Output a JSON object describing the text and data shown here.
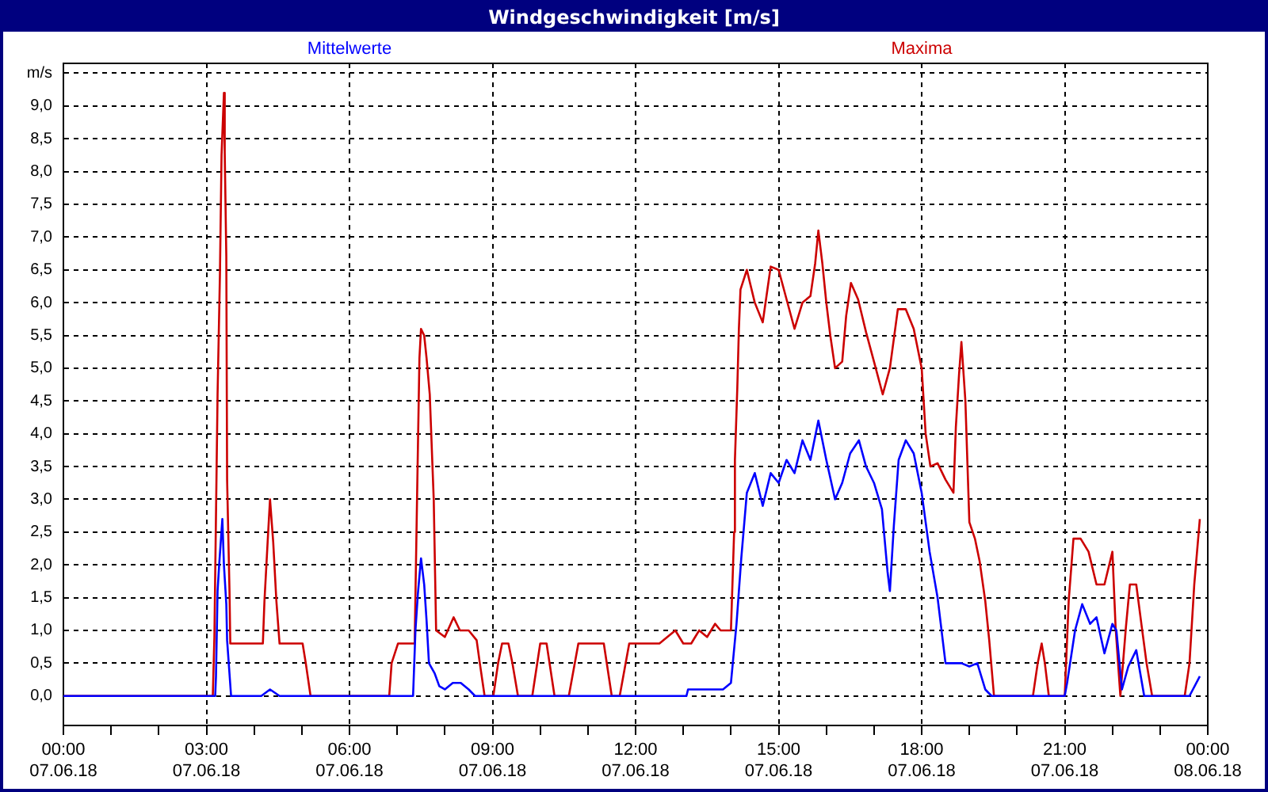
{
  "chart_data": {
    "type": "line",
    "title": "Windgeschwindigkeit [m/s]",
    "legend": "top",
    "grid": true,
    "marker": "none",
    "line_style": "solid",
    "xlim": [
      "--06-07T00:00",
      "--06-08T00:00"
    ],
    "xticks": [
      {
        "value": "--06-07T00:00",
        "label": "00:00\n07.06.18"
      },
      {
        "value": "--06-07T01:00",
        "label": null
      },
      {
        "value": "--06-07T02:00",
        "label": null
      },
      {
        "value": "--06-07T03:00",
        "label": "03:00\n07.06.18"
      },
      {
        "value": "--06-07T04:00",
        "label": null
      },
      {
        "value": "--06-07T05:00",
        "label": null
      },
      {
        "value": "--06-07T06:00",
        "label": "06:00\n07.06.18"
      },
      {
        "value": "--06-07T07:00",
        "label": null
      },
      {
        "value": "--06-07T08:00",
        "label": null
      },
      {
        "value": "--06-07T09:00",
        "label": "09:00\n07.06.18"
      },
      {
        "value": "--06-07T10:00",
        "label": null
      },
      {
        "value": "--06-07T11:00",
        "label": null
      },
      {
        "value": "--06-07T12:00",
        "label": "12:00\n07.06.18"
      },
      {
        "value": "--06-07T13:00",
        "label": null
      },
      {
        "value": "--06-07T14:00",
        "label": null
      },
      {
        "value": "--06-07T15:00",
        "label": "15:00\n07.06.18"
      },
      {
        "value": "--06-07T16:00",
        "label": null
      },
      {
        "value": "--06-07T17:00",
        "label": null
      },
      {
        "value": "--06-07T18:00",
        "label": "18:00\n07.06.18"
      },
      {
        "value": "--06-07T19:00",
        "label": null
      },
      {
        "value": "--06-07T20:00",
        "label": null
      },
      {
        "value": "--06-07T21:00",
        "label": "21:00\n07.06.18"
      },
      {
        "value": "--06-07T22:00",
        "label": null
      },
      {
        "value": "--06-07T23:00",
        "label": null
      },
      {
        "value": "--06-08T00:00",
        "label": "00:00\n08.06.18"
      }
    ],
    "ylim": [
      -0.45,
      9.65
    ],
    "yticks": [
      {
        "value": 0,
        "label": "0,0"
      },
      {
        "value": 0.5,
        "label": "0,5"
      },
      {
        "value": 1,
        "label": "1,0"
      },
      {
        "value": 1.5,
        "label": "1,5"
      },
      {
        "value": 2,
        "label": "2,0"
      },
      {
        "value": 2.5,
        "label": "2,5"
      },
      {
        "value": 3,
        "label": "3,0"
      },
      {
        "value": 3.5,
        "label": "3,5"
      },
      {
        "value": 4,
        "label": "4,0"
      },
      {
        "value": 4.5,
        "label": "4,5"
      },
      {
        "value": 5,
        "label": "5,0"
      },
      {
        "value": 5.5,
        "label": "5,5"
      },
      {
        "value": 6,
        "label": "6,0"
      },
      {
        "value": 6.5,
        "label": "6,5"
      },
      {
        "value": 7,
        "label": "7,0"
      },
      {
        "value": 7.5,
        "label": "7,5"
      },
      {
        "value": 8,
        "label": "8,0"
      },
      {
        "value": 8.5,
        "label": "8,5"
      },
      {
        "value": 9,
        "label": "9,0"
      },
      {
        "value": 9.5,
        "label": "m/s"
      }
    ],
    "series": [
      {
        "name": "Mittelwerte",
        "color": "#0000ff",
        "x": [
          "--06-07T00:00",
          "--06-07T03:11",
          "--06-07T03:12",
          "--06-07T03:14",
          "--06-07T03:16",
          "--06-07T03:20",
          "--06-07T03:22",
          "--06-07T03:25",
          "--06-07T03:26",
          "--06-07T03:31",
          "--06-07T04:09",
          "--06-07T04:20",
          "--06-07T04:32",
          "--06-07T07:20",
          "--06-07T07:23",
          "--06-07T07:26",
          "--06-07T07:30",
          "--06-07T07:34",
          "--06-07T07:37",
          "--06-07T07:40",
          "--06-07T07:47",
          "--06-07T07:53",
          "--06-07T08:00",
          "--06-07T08:10",
          "--06-07T08:20",
          "--06-07T08:30",
          "--06-07T08:38",
          "--06-07T13:04",
          "--06-07T13:06",
          "--06-07T13:50",
          "--06-07T14:00",
          "--06-07T14:07",
          "--06-07T14:13",
          "--06-07T14:20",
          "--06-07T14:30",
          "--06-07T14:40",
          "--06-07T14:50",
          "--06-07T15:00",
          "--06-07T15:10",
          "--06-07T15:20",
          "--06-07T15:30",
          "--06-07T15:40",
          "--06-07T15:50",
          "--06-07T16:00",
          "--06-07T16:11",
          "--06-07T16:20",
          "--06-07T16:30",
          "--06-07T16:41",
          "--06-07T16:50",
          "--06-07T17:00",
          "--06-07T17:10",
          "--06-07T17:17",
          "--06-07T17:20",
          "--06-07T17:25",
          "--06-07T17:31",
          "--06-07T17:40",
          "--06-07T17:50",
          "--06-07T18:00",
          "--06-07T18:10",
          "--06-07T18:20",
          "--06-07T18:30",
          "--06-07T18:50",
          "--06-07T19:00",
          "--06-07T19:10",
          "--06-07T19:20",
          "--06-07T19:28",
          "--06-07T21:00",
          "--06-07T21:03",
          "--06-07T21:13",
          "--06-07T21:22",
          "--06-07T21:32",
          "--06-07T21:40",
          "--06-07T21:50",
          "--06-07T22:00",
          "--06-07T22:05",
          "--06-07T22:12",
          "--06-07T22:20",
          "--06-07T22:30",
          "--06-07T22:40",
          "--06-07T23:37",
          "--06-07T23:50"
        ],
        "values": [
          0,
          0,
          0.3,
          1.6,
          2.0,
          2.7,
          2.0,
          1.4,
          0.85,
          0,
          0,
          0.1,
          0,
          0,
          1.0,
          1.55,
          2.1,
          1.7,
          1.15,
          0.5,
          0.35,
          0.15,
          0.1,
          0.2,
          0.2,
          0.1,
          0,
          0,
          0.1,
          0.1,
          0.2,
          1.1,
          2.1,
          3.1,
          3.4,
          2.9,
          3.4,
          3.25,
          3.6,
          3.4,
          3.9,
          3.6,
          4.2,
          3.6,
          3.0,
          3.25,
          3.7,
          3.9,
          3.5,
          3.25,
          2.85,
          1.9,
          1.6,
          2.6,
          3.6,
          3.9,
          3.7,
          3.1,
          2.2,
          1.5,
          0.5,
          0.5,
          0.45,
          0.5,
          0.1,
          0,
          0,
          0.2,
          1.0,
          1.4,
          1.1,
          1.2,
          0.65,
          1.1,
          1.0,
          0.1,
          0.45,
          0.7,
          0,
          0,
          0.3
        ]
      },
      {
        "name": "Maxima",
        "color": "#cc0000",
        "x": [
          "--06-07T00:00",
          "--06-07T03:08",
          "--06-07T03:10",
          "--06-07T03:12",
          "--06-07T03:14",
          "--06-07T03:17",
          "--06-07T03:19",
          "--06-07T03:22",
          "--06-07T03:23",
          "--06-07T03:25",
          "--06-07T03:26",
          "--06-07T03:29",
          "--06-07T03:30",
          "--06-07T04:11",
          "--06-07T04:13",
          "--06-07T04:17",
          "--06-07T04:20",
          "--06-07T04:24",
          "--06-07T04:28",
          "--06-07T04:32",
          "--06-07T05:01",
          "--06-07T05:05",
          "--06-07T05:11",
          "--06-07T06:50",
          "--06-07T06:53",
          "--06-07T07:01",
          "--06-07T07:22",
          "--06-07T07:25",
          "--06-07T07:28",
          "--06-07T07:30",
          "--06-07T07:34",
          "--06-07T07:37",
          "--06-07T07:41",
          "--06-07T07:46",
          "--06-07T07:49",
          "--06-07T08:00",
          "--06-07T08:11",
          "--06-07T08:19",
          "--06-07T08:30",
          "--06-07T08:40",
          "--06-07T08:44",
          "--06-07T08:50",
          "--06-07T09:01",
          "--06-07T09:07",
          "--06-07T09:12",
          "--06-07T09:20",
          "--06-07T09:25",
          "--06-07T09:32",
          "--06-07T09:50",
          "--06-07T10:00",
          "--06-07T10:08",
          "--06-07T10:18",
          "--06-07T10:36",
          "--06-07T10:48",
          "--06-07T11:20",
          "--06-07T11:30",
          "--06-07T11:40",
          "--06-07T11:52",
          "--06-07T12:30",
          "--06-07T12:50",
          "--06-07T13:00",
          "--06-07T13:10",
          "--06-07T13:20",
          "--06-07T13:30",
          "--06-07T13:40",
          "--06-07T13:47",
          "--06-07T14:00",
          "--06-07T14:04",
          "--06-07T14:05",
          "--06-07T14:08",
          "--06-07T14:10",
          "--06-07T14:12",
          "--06-07T14:20",
          "--06-07T14:30",
          "--06-07T14:40",
          "--06-07T14:50",
          "--06-07T15:00",
          "--06-07T15:10",
          "--06-07T15:20",
          "--06-07T15:30",
          "--06-07T15:40",
          "--06-07T15:46",
          "--06-07T15:50",
          "--06-07T15:55",
          "--06-07T16:00",
          "--06-07T16:05",
          "--06-07T16:11",
          "--06-07T16:20",
          "--06-07T16:25",
          "--06-07T16:31",
          "--06-07T16:40",
          "--06-07T16:50",
          "--06-07T17:00",
          "--06-07T17:11",
          "--06-07T17:20",
          "--06-07T17:30",
          "--06-07T17:40",
          "--06-07T17:50",
          "--06-07T18:00",
          "--06-07T18:05",
          "--06-07T18:11",
          "--06-07T18:20",
          "--06-07T18:30",
          "--06-07T18:40",
          "--06-07T18:43",
          "--06-07T18:47",
          "--06-07T18:50",
          "--06-07T18:55",
          "--06-07T19:00",
          "--06-07T19:07",
          "--06-07T19:13",
          "--06-07T19:20",
          "--06-07T19:25",
          "--06-07T19:31",
          "--06-07T20:20",
          "--06-07T20:26",
          "--06-07T20:31",
          "--06-07T20:35",
          "--06-07T20:40",
          "--06-07T21:00",
          "--06-07T21:05",
          "--06-07T21:11",
          "--06-07T21:20",
          "--06-07T21:30",
          "--06-07T21:40",
          "--06-07T21:50",
          "--06-07T22:00",
          "--06-07T22:04",
          "--06-07T22:10",
          "--06-07T22:17",
          "--06-07T22:22",
          "--06-07T22:30",
          "--06-07T22:37",
          "--06-07T22:43",
          "--06-07T22:50",
          "--06-07T23:31",
          "--06-07T23:37",
          "--06-07T23:43",
          "--06-07T23:50"
        ],
        "values": [
          0,
          0,
          0.9,
          2.75,
          4.6,
          6.45,
          8.25,
          9.2,
          8.3,
          6.7,
          3.3,
          1.6,
          0.8,
          0.8,
          1.45,
          2.35,
          3.0,
          2.35,
          1.45,
          0.8,
          0.8,
          0.5,
          0,
          0,
          0.5,
          0.8,
          0.8,
          3.0,
          5.15,
          5.6,
          5.5,
          5.15,
          4.6,
          3.0,
          1.0,
          0.9,
          1.2,
          1.0,
          1.0,
          0.85,
          0.5,
          0,
          0,
          0.5,
          0.8,
          0.8,
          0.5,
          0,
          0,
          0.8,
          0.8,
          0,
          0,
          0.8,
          0.8,
          0,
          0,
          0.8,
          0.8,
          1.0,
          0.8,
          0.8,
          1.0,
          0.9,
          1.1,
          1.0,
          1.0,
          2.5,
          3.6,
          4.7,
          5.6,
          6.2,
          6.5,
          6.0,
          5.7,
          6.55,
          6.5,
          6.05,
          5.6,
          6.0,
          6.1,
          6.6,
          7.1,
          6.6,
          6.0,
          5.5,
          5.0,
          5.1,
          5.8,
          6.3,
          6.05,
          5.55,
          5.1,
          4.6,
          5.0,
          5.9,
          5.9,
          5.6,
          5.0,
          4.0,
          3.5,
          3.55,
          3.3,
          3.1,
          4.1,
          4.9,
          5.4,
          4.5,
          2.65,
          2.4,
          2.05,
          1.45,
          0.85,
          0,
          0,
          0.5,
          0.8,
          0.5,
          0,
          0,
          1.45,
          2.4,
          2.4,
          2.2,
          1.7,
          1.7,
          2.2,
          1.05,
          0,
          1.05,
          1.7,
          1.7,
          1.05,
          0.5,
          0,
          0,
          0.5,
          1.7,
          2.7
        ]
      }
    ]
  }
}
